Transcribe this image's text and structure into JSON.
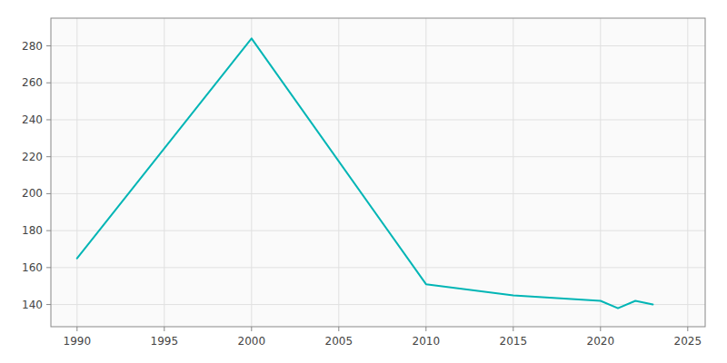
{
  "chart_data": {
    "type": "line",
    "x": [
      1990,
      2000,
      2010,
      2015,
      2020,
      2021,
      2022,
      2023
    ],
    "values": [
      165,
      284,
      151,
      145,
      142,
      138,
      142,
      140
    ],
    "color": "#00B5B5",
    "xlim": [
      1988.5,
      2026
    ],
    "ylim": [
      128,
      295
    ],
    "xticks": [
      1990,
      1995,
      2000,
      2005,
      2010,
      2015,
      2020,
      2025
    ],
    "yticks": [
      140,
      160,
      180,
      200,
      220,
      240,
      260,
      280
    ],
    "grid": true
  }
}
